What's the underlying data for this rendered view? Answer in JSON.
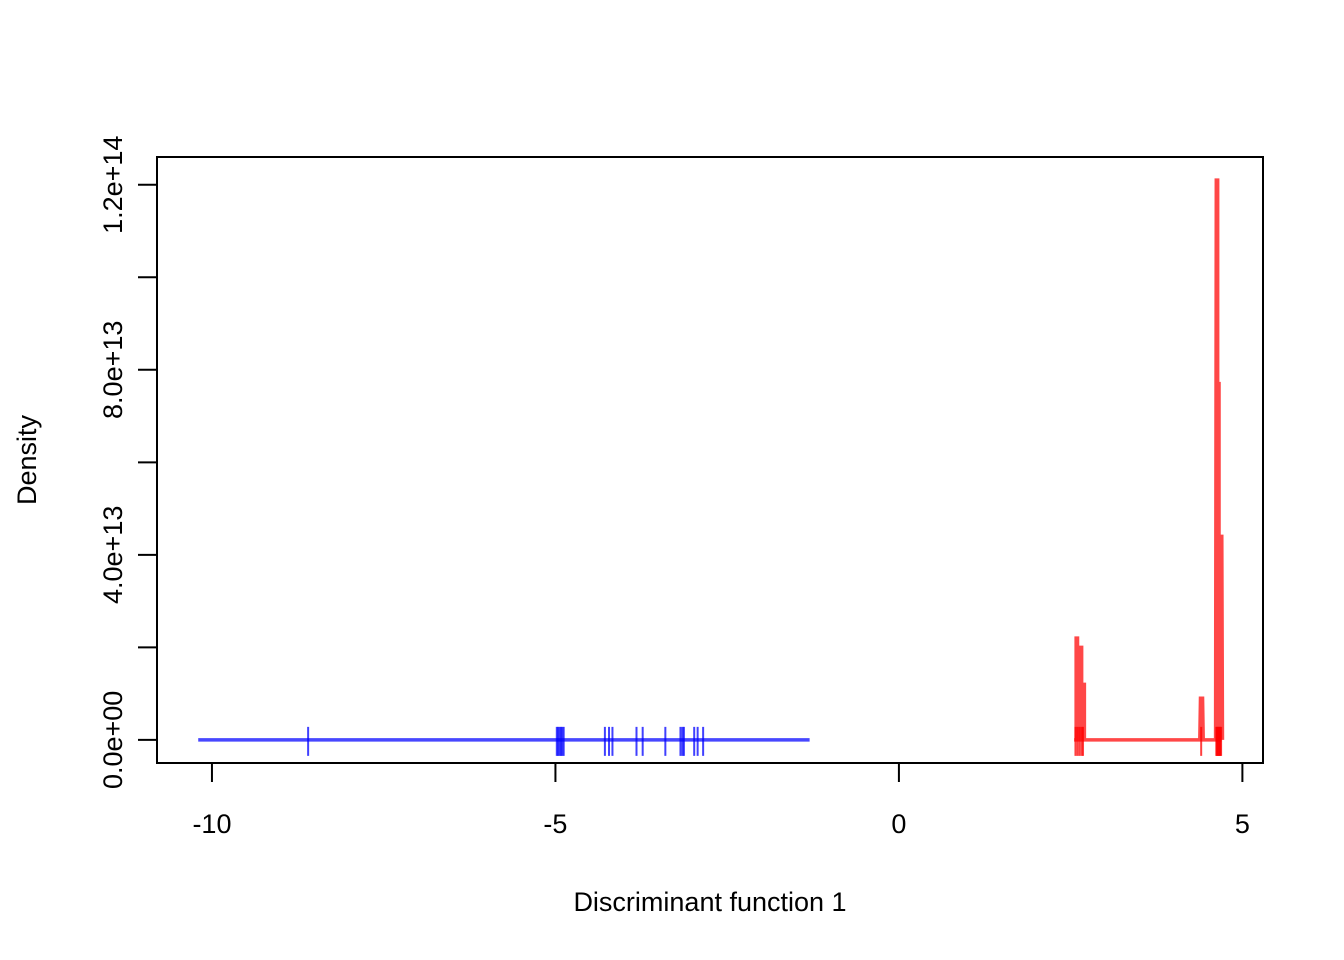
{
  "chart_data": {
    "type": "line",
    "xlabel": "Discriminant function 1",
    "ylabel": "Density",
    "xlim": [
      -10.8,
      5.3
    ],
    "ylim": [
      -5000000000000.0,
      126000000000000.0
    ],
    "x_ticks": [
      -10,
      -5,
      0,
      5
    ],
    "x_tick_labels": [
      "-10",
      "-5",
      "0",
      "5"
    ],
    "y_ticks": [
      0,
      20000000000000.0,
      40000000000000.0,
      60000000000000.0,
      80000000000000.0,
      100000000000000.0,
      120000000000000.0
    ],
    "y_tick_labels": [
      "0.0e+00",
      "",
      "4.0e+13",
      "",
      "8.0e+13",
      "",
      "1.2e+14"
    ],
    "grid": false,
    "series": [
      {
        "color": "#0000ff",
        "density": [
          [
            -10.2,
            0
          ],
          [
            -1.3,
            0
          ]
        ],
        "rug": [
          -8.6,
          -4.98,
          -4.96,
          -4.94,
          -4.92,
          -4.9,
          -4.88,
          -4.28,
          -4.22,
          -4.17,
          -3.82,
          -3.73,
          -3.4,
          -3.18,
          -3.15,
          -3.13,
          -2.98,
          -2.93,
          -2.85
        ]
      },
      {
        "color": "#ff0000",
        "density": [
          [
            2.55,
            0
          ],
          [
            2.58,
            0
          ],
          [
            2.58,
            22000000000000.0
          ],
          [
            2.6,
            22000000000000.0
          ],
          [
            2.6,
            0
          ],
          [
            2.64,
            0
          ],
          [
            2.64,
            20000000000000.0
          ],
          [
            2.66,
            20000000000000.0
          ],
          [
            2.66,
            0
          ],
          [
            2.69,
            0
          ],
          [
            2.69,
            12000000000000.0
          ],
          [
            2.7,
            12000000000000.0
          ],
          [
            2.7,
            0
          ],
          [
            4.38,
            0
          ],
          [
            4.39,
            9000000000000.0
          ],
          [
            4.42,
            9000000000000.0
          ],
          [
            4.43,
            0
          ],
          [
            4.61,
            0
          ],
          [
            4.62,
            121000000000000.0
          ],
          [
            4.64,
            121000000000000.0
          ],
          [
            4.64,
            0
          ],
          [
            4.65,
            0
          ],
          [
            4.65,
            77000000000000.0
          ],
          [
            4.66,
            77000000000000.0
          ],
          [
            4.66,
            0
          ],
          [
            4.67,
            0
          ],
          [
            4.68,
            44000000000000.0
          ],
          [
            4.7,
            44000000000000.0
          ],
          [
            4.71,
            0
          ]
        ],
        "rug": [
          2.57,
          2.6,
          2.63,
          2.66,
          2.68,
          4.4,
          4.62,
          4.63,
          4.64,
          4.65,
          4.66,
          4.67,
          4.68,
          4.69
        ]
      }
    ]
  }
}
